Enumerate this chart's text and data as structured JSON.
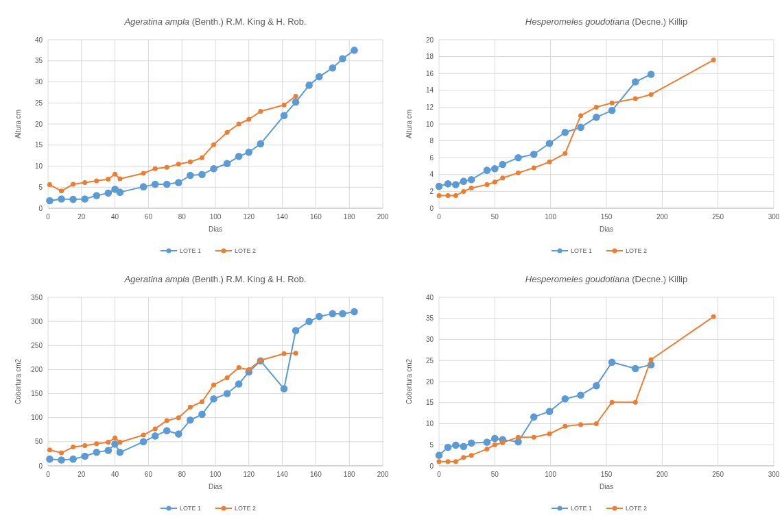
{
  "chart_data": [
    {
      "type": "line",
      "title": "Ageratina ampla (Benth.) R.M. King & H. Rob.",
      "xlabel": "Dias",
      "ylabel": "Altura cm",
      "xlim": [
        0,
        200
      ],
      "xticks": [
        0,
        20,
        40,
        60,
        80,
        100,
        120,
        140,
        160,
        180,
        200
      ],
      "ylim": [
        0,
        40
      ],
      "yticks": [
        0,
        5,
        10,
        15,
        20,
        25,
        30,
        35,
        40
      ],
      "grid": true,
      "legend": "bottom",
      "marker": "circle",
      "series": [
        {
          "name": "LOTE 1",
          "color": "#5b9bd5",
          "x": [
            1,
            8,
            15,
            22,
            29,
            36,
            40,
            43,
            57,
            64,
            71,
            78,
            85,
            92,
            99,
            107,
            114,
            120,
            127,
            141,
            148,
            156,
            162,
            170,
            176,
            183
          ],
          "values": [
            1.8,
            2.2,
            2.1,
            2.2,
            3.0,
            3.6,
            4.5,
            3.8,
            5.1,
            5.7,
            5.7,
            6.1,
            7.8,
            8.0,
            9.4,
            10.6,
            12.3,
            13.3,
            15.3,
            22,
            25.2,
            29.2,
            31.2,
            33.3,
            35.5,
            37.5
          ]
        },
        {
          "name": "LOTE 2",
          "color": "#ed7d31",
          "x": [
            1,
            8,
            15,
            22,
            29,
            36,
            40,
            43,
            57,
            64,
            71,
            78,
            85,
            92,
            99,
            107,
            114,
            120,
            127,
            141,
            148
          ],
          "values": [
            5.6,
            4.1,
            5.7,
            6.1,
            6.5,
            6.9,
            8.1,
            7.0,
            8.3,
            9.4,
            9.7,
            10.5,
            11.0,
            12.0,
            15.1,
            18.0,
            20.0,
            21.1,
            23.0,
            24.5,
            26.6
          ]
        }
      ]
    },
    {
      "type": "line",
      "title": "Hesperomeles goudotiana (Decne.) Killip",
      "xlabel": "Dias",
      "ylabel": "Altura cm",
      "xlim": [
        0,
        300
      ],
      "xticks": [
        0,
        50,
        100,
        150,
        200,
        250,
        300
      ],
      "ylim": [
        0,
        20
      ],
      "yticks": [
        0,
        2,
        4,
        6,
        8,
        10,
        12,
        14,
        16,
        18,
        20
      ],
      "grid": true,
      "legend": "bottom",
      "marker": "circle",
      "series": [
        {
          "name": "LOTE 1",
          "color": "#5b9bd5",
          "x": [
            0,
            8,
            15,
            22,
            29,
            43,
            50,
            57,
            71,
            85,
            99,
            113,
            127,
            141,
            155,
            176,
            190
          ],
          "values": [
            2.6,
            2.9,
            2.8,
            3.2,
            3.4,
            4.5,
            4.7,
            5.2,
            6.0,
            6.4,
            7.7,
            9.0,
            9.6,
            10.8,
            11.6,
            15.0,
            15.9
          ]
        },
        {
          "name": "LOTE 2",
          "color": "#ed7d31",
          "x": [
            0,
            8,
            15,
            22,
            29,
            43,
            50,
            57,
            71,
            85,
            99,
            113,
            127,
            141,
            155,
            176,
            190,
            246
          ],
          "values": [
            1.5,
            1.5,
            1.5,
            2.0,
            2.4,
            2.8,
            3.1,
            3.6,
            4.2,
            4.8,
            5.5,
            6.5,
            11.0,
            12.0,
            12.5,
            13.0,
            13.5,
            17.6
          ]
        }
      ]
    },
    {
      "type": "line",
      "title": "Ageratina ampla (Benth.) R.M. King & H. Rob.",
      "xlabel": "Dias",
      "ylabel": "Cobertura cm2",
      "xlim": [
        0,
        200
      ],
      "xticks": [
        0,
        20,
        40,
        60,
        80,
        100,
        120,
        140,
        160,
        180,
        200
      ],
      "ylim": [
        0,
        350
      ],
      "yticks": [
        0,
        50,
        100,
        150,
        200,
        250,
        300,
        350
      ],
      "grid": true,
      "legend": "bottom",
      "marker": "circle",
      "series": [
        {
          "name": "LOTE 1",
          "color": "#5b9bd5",
          "x": [
            1,
            8,
            15,
            22,
            29,
            36,
            40,
            43,
            57,
            64,
            71,
            78,
            85,
            92,
            99,
            107,
            114,
            120,
            127,
            141,
            148,
            156,
            162,
            170,
            176,
            183
          ],
          "values": [
            14,
            12,
            14,
            20,
            28,
            32,
            45,
            28,
            50,
            62,
            73,
            66,
            95,
            107,
            139,
            150,
            170,
            195,
            218,
            160,
            281,
            300,
            310,
            316,
            316,
            320
          ]
        },
        {
          "name": "LOTE 2",
          "color": "#ed7d31",
          "x": [
            1,
            8,
            15,
            22,
            29,
            36,
            40,
            43,
            57,
            64,
            71,
            78,
            85,
            92,
            99,
            107,
            114,
            120,
            127,
            141,
            148
          ],
          "values": [
            33,
            27,
            39,
            42,
            46,
            49,
            58,
            49,
            64,
            77,
            94,
            100,
            122,
            133,
            168,
            183,
            204,
            200,
            219,
            233,
            234
          ]
        }
      ]
    },
    {
      "type": "line",
      "title": "Hesperomeles goudotiana (Decne.) Killip",
      "xlabel": "Dias",
      "ylabel": "Cobertura cm2",
      "xlim": [
        0,
        300
      ],
      "xticks": [
        0,
        50,
        100,
        150,
        200,
        250,
        300
      ],
      "ylim": [
        0,
        40
      ],
      "yticks": [
        0,
        5,
        10,
        15,
        20,
        25,
        30,
        35,
        40
      ],
      "grid": true,
      "legend": "bottom",
      "marker": "circle",
      "series": [
        {
          "name": "LOTE 1",
          "color": "#5b9bd5",
          "x": [
            0,
            8,
            15,
            22,
            29,
            43,
            50,
            57,
            71,
            85,
            99,
            113,
            127,
            141,
            155,
            176,
            190
          ],
          "values": [
            2.5,
            4.4,
            4.9,
            4.6,
            5.4,
            5.6,
            6.5,
            6.2,
            5.7,
            11.6,
            12.9,
            15.9,
            16.8,
            19.0,
            24.6,
            23.1,
            24.0
          ]
        },
        {
          "name": "LOTE 2",
          "color": "#ed7d31",
          "x": [
            0,
            8,
            15,
            22,
            29,
            43,
            50,
            57,
            71,
            85,
            99,
            113,
            127,
            141,
            155,
            176,
            190,
            246
          ],
          "values": [
            1.0,
            1.0,
            1.0,
            2.0,
            2.5,
            4.0,
            5.0,
            5.5,
            6.8,
            6.8,
            7.6,
            9.4,
            9.8,
            10.0,
            15.1,
            15.1,
            25.2,
            35.4
          ]
        }
      ]
    }
  ]
}
